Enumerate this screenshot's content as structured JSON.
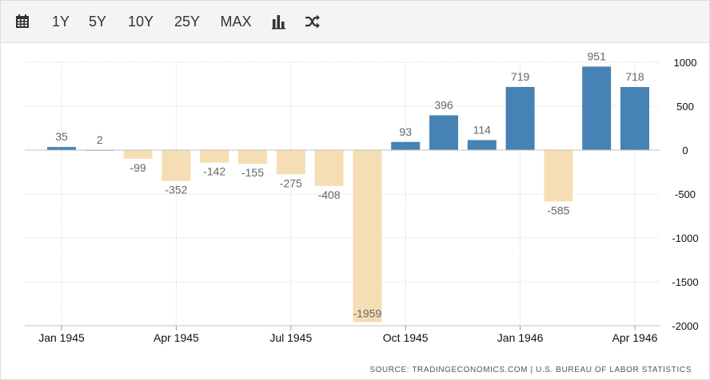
{
  "toolbar": {
    "buttons": [
      {
        "icon": "calendar-icon"
      },
      {
        "label": "1Y"
      },
      {
        "label": "5Y"
      },
      {
        "label": "10Y"
      },
      {
        "label": "25Y"
      },
      {
        "label": "MAX"
      },
      {
        "icon": "bar-chart-icon"
      },
      {
        "icon": "shuffle-icon"
      }
    ]
  },
  "source": "SOURCE: TRADINGECONOMICS.COM  |  U.S. BUREAU OF LABOR STATISTICS",
  "colors": {
    "positive": "#4682b4",
    "negative": "#f5deb3",
    "grid": "#cccccc",
    "label": "#666666"
  },
  "chart_data": {
    "type": "bar",
    "categories": [
      "Jan 1945",
      "Feb 1945",
      "Mar 1945",
      "Apr 1945",
      "May 1945",
      "Jun 1945",
      "Jul 1945",
      "Aug 1945",
      "Sep 1945",
      "Oct 1945",
      "Nov 1945",
      "Dec 1945",
      "Jan 1946",
      "Feb 1946",
      "Mar 1946",
      "Apr 1946"
    ],
    "values": [
      35,
      2,
      -99,
      -352,
      -142,
      -155,
      -275,
      -408,
      -1959,
      93,
      396,
      114,
      719,
      -585,
      951,
      718
    ],
    "x_tick_labels": [
      {
        "label": "Jan 1945",
        "index": 0
      },
      {
        "label": "Apr 1945",
        "index": 3
      },
      {
        "label": "Jul 1945",
        "index": 6
      },
      {
        "label": "Oct 1945",
        "index": 9
      },
      {
        "label": "Jan 1946",
        "index": 12
      },
      {
        "label": "Apr 1946",
        "index": 15
      }
    ],
    "y_ticks": [
      1000,
      500,
      0,
      -500,
      -1000,
      -1500,
      -2000
    ],
    "ylim": [
      -2000,
      1000
    ],
    "y_axis_position": "right",
    "grid": true,
    "legend": "none"
  }
}
